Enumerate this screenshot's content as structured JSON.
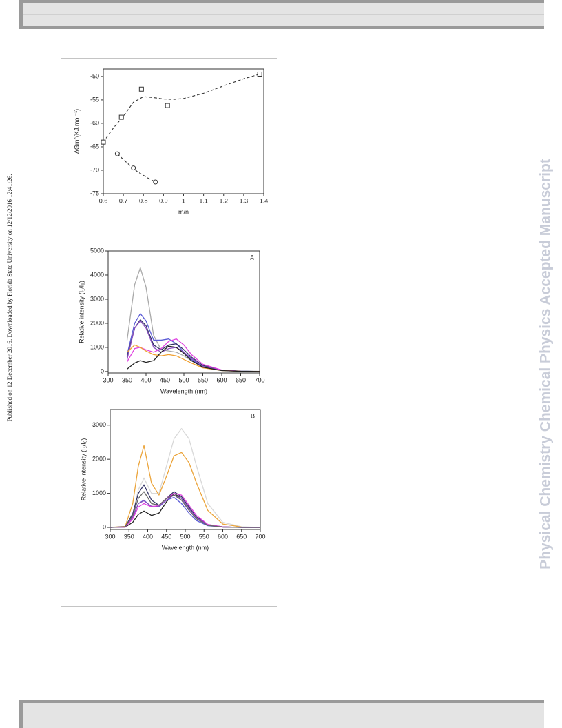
{
  "side_note": "Published on 12 December 2016. Downloaded by Florida State University on 12/12/2016 12:41:26.",
  "watermark": "Physical Chemistry Chemical Physics Accepted Manuscript",
  "chart_data": [
    {
      "type": "scatter",
      "xlabel": "m/n",
      "ylabel": "ΔGm°(KJ.mol⁻¹)",
      "xlim": [
        0.6,
        1.4
      ],
      "ylim": [
        -75,
        -48.4
      ],
      "xticks": [
        0.6,
        0.7,
        0.8,
        0.9,
        1.0,
        1.1,
        1.2,
        1.3,
        1.4
      ],
      "yticks": [
        -75,
        -70,
        -65,
        -60,
        -55,
        -50
      ],
      "series": [
        {
          "marker": "square",
          "color": "#333333",
          "x": [
            0.6,
            0.69,
            0.79,
            0.92,
            1.38
          ],
          "values": [
            -64,
            -58.7,
            -52.7,
            -56.2,
            -49.5
          ]
        },
        {
          "marker": "circle",
          "color": "#333333",
          "x": [
            0.67,
            0.75,
            0.86
          ],
          "values": [
            -66.5,
            -69.5,
            -72.5
          ]
        }
      ],
      "fits": [
        {
          "color": "#333333",
          "x": [
            0.6,
            0.65,
            0.7,
            0.75,
            0.8,
            0.85,
            0.9,
            0.95,
            1.0,
            1.1,
            1.2,
            1.3,
            1.38
          ],
          "values": [
            -64,
            -61,
            -58.5,
            -55.5,
            -54.3,
            -54.5,
            -54.8,
            -54.9,
            -54.7,
            -53.6,
            -52,
            -50.5,
            -49.5
          ]
        },
        {
          "color": "#333333",
          "x": [
            0.67,
            0.72,
            0.77,
            0.82,
            0.86
          ],
          "values": [
            -66.5,
            -68.5,
            -70.3,
            -71.6,
            -72.5
          ]
        }
      ]
    },
    {
      "type": "line",
      "panel": "A",
      "xlabel": "Wavelength (nm)",
      "ylabel": "Relative intensity (I₁/I₀)",
      "xlim": [
        300,
        700
      ],
      "ylim": [
        -60,
        5000
      ],
      "xticks": [
        300,
        350,
        400,
        450,
        500,
        550,
        600,
        650,
        700
      ],
      "yticks": [
        0,
        1000,
        2000,
        3000,
        4000,
        5000
      ],
      "x": [
        350,
        370,
        385,
        400,
        420,
        440,
        460,
        480,
        500,
        520,
        550,
        600,
        650,
        700
      ],
      "series": [
        {
          "color": "#a8a8a8",
          "values": [
            1300,
            3600,
            4300,
            3500,
            1500,
            900,
            850,
            800,
            650,
            450,
            200,
            60,
            20,
            10
          ]
        },
        {
          "color": "#5b5bd6",
          "values": [
            700,
            2000,
            2400,
            2100,
            1300,
            1300,
            1350,
            1150,
            800,
            500,
            200,
            50,
            15,
            5
          ]
        },
        {
          "color": "#333366",
          "values": [
            600,
            1800,
            2150,
            1900,
            1100,
            900,
            1100,
            1150,
            900,
            600,
            250,
            60,
            15,
            5
          ]
        },
        {
          "color": "#8a4fbf",
          "values": [
            500,
            1800,
            2100,
            1800,
            1000,
            800,
            950,
            1000,
            800,
            550,
            220,
            50,
            10,
            5
          ]
        },
        {
          "color": "#e040e0",
          "values": [
            400,
            950,
            1000,
            900,
            800,
            950,
            1250,
            1350,
            1100,
            700,
            300,
            60,
            10,
            5
          ]
        },
        {
          "color": "#f0a030",
          "values": [
            800,
            1100,
            1000,
            850,
            700,
            650,
            700,
            650,
            500,
            350,
            150,
            40,
            10,
            5
          ]
        },
        {
          "color": "#222222",
          "values": [
            100,
            350,
            450,
            380,
            450,
            800,
            1050,
            1000,
            750,
            450,
            180,
            40,
            10,
            5
          ]
        }
      ]
    },
    {
      "type": "line",
      "panel": "B",
      "xlabel": "Wavelength (nm)",
      "ylabel": "Relative intensity (I₁/I₀)",
      "xlim": [
        300,
        700
      ],
      "ylim": [
        -60,
        3460
      ],
      "xticks": [
        300,
        350,
        400,
        450,
        500,
        550,
        600,
        650,
        700
      ],
      "yticks": [
        0,
        1000,
        2000,
        3000
      ],
      "x": [
        300,
        340,
        360,
        375,
        390,
        410,
        430,
        450,
        470,
        490,
        510,
        530,
        560,
        600,
        650,
        700
      ],
      "series": [
        {
          "color": "#d8d8d8",
          "values": [
            0,
            20,
            400,
            1100,
            1450,
            1000,
            1000,
            1800,
            2600,
            2900,
            2600,
            1800,
            700,
            150,
            20,
            0
          ]
        },
        {
          "color": "#eba43a",
          "values": [
            0,
            30,
            700,
            1800,
            2400,
            1300,
            950,
            1500,
            2100,
            2200,
            1900,
            1300,
            500,
            100,
            10,
            0
          ]
        },
        {
          "color": "#222222",
          "values": [
            0,
            10,
            150,
            380,
            480,
            350,
            420,
            750,
            1000,
            850,
            550,
            300,
            80,
            15,
            0,
            0
          ]
        },
        {
          "color": "#333366",
          "values": [
            0,
            20,
            400,
            1000,
            1250,
            800,
            650,
            850,
            1050,
            900,
            600,
            300,
            80,
            15,
            0,
            0
          ]
        },
        {
          "color": "#5b5bd6",
          "values": [
            0,
            15,
            300,
            700,
            800,
            600,
            600,
            800,
            880,
            700,
            420,
            200,
            50,
            10,
            0,
            0
          ]
        },
        {
          "color": "#8a4fbf",
          "values": [
            0,
            15,
            300,
            700,
            780,
            620,
            620,
            800,
            950,
            850,
            550,
            280,
            70,
            10,
            0,
            0
          ]
        },
        {
          "color": "#e040e0",
          "values": [
            0,
            10,
            250,
            600,
            700,
            600,
            650,
            850,
            1000,
            950,
            650,
            350,
            90,
            15,
            0,
            0
          ]
        },
        {
          "color": "#666666",
          "values": [
            0,
            15,
            350,
            850,
            1050,
            700,
            650,
            850,
            950,
            800,
            500,
            250,
            60,
            10,
            0,
            0
          ]
        }
      ]
    }
  ]
}
